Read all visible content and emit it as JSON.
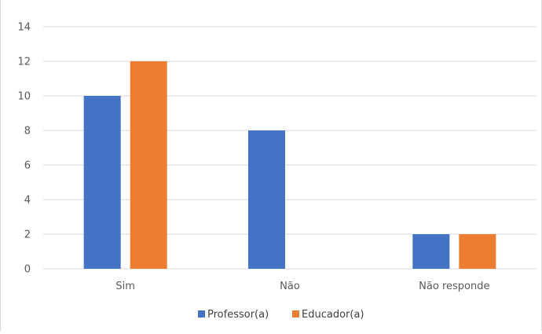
{
  "chart_data": {
    "type": "bar",
    "title": "",
    "xlabel": "",
    "ylabel": "",
    "categories": [
      "Sim",
      "Não",
      "Não responde"
    ],
    "series": [
      {
        "name": "Professor(a)",
        "values": [
          10,
          8,
          2
        ],
        "color": "#4472C4"
      },
      {
        "name": "Educador(a)",
        "values": [
          12,
          0,
          2
        ],
        "color": "#ED7D31"
      }
    ],
    "ylim": [
      0,
      14
    ],
    "yticks": [
      0,
      2,
      4,
      6,
      8,
      10,
      12,
      14
    ],
    "grid": true,
    "gridline_color": "#d9d9d9",
    "legend_position": "bottom"
  }
}
